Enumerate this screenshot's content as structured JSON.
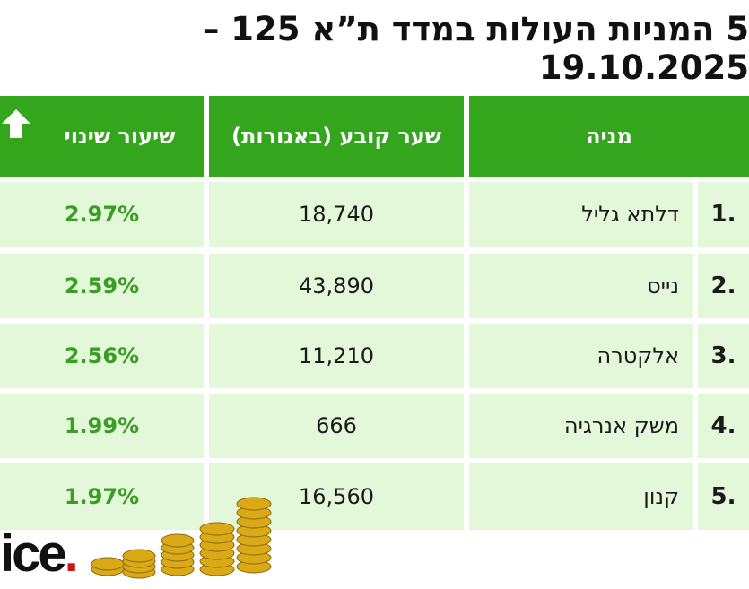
{
  "title": "5 המניות העולות במדד ת”א 125 – 19.10.2025",
  "table": {
    "header": [
      "מניה",
      "שער קובע (באגורות)",
      "שיעור שינוי"
    ],
    "rows": [
      [
        "1.",
        "דלתא גליל",
        "18,740",
        "2.97%"
      ],
      [
        "2.",
        "נייס",
        "43,890",
        "2.59%"
      ],
      [
        "3.",
        "אלקטרה",
        "11,210",
        "2.56%"
      ],
      [
        "4.",
        "משק אנרגיה",
        "666",
        "1.99%"
      ],
      [
        "5.",
        "קנון",
        "16,560",
        "1.97%"
      ]
    ]
  },
  "logo": "ice"
}
